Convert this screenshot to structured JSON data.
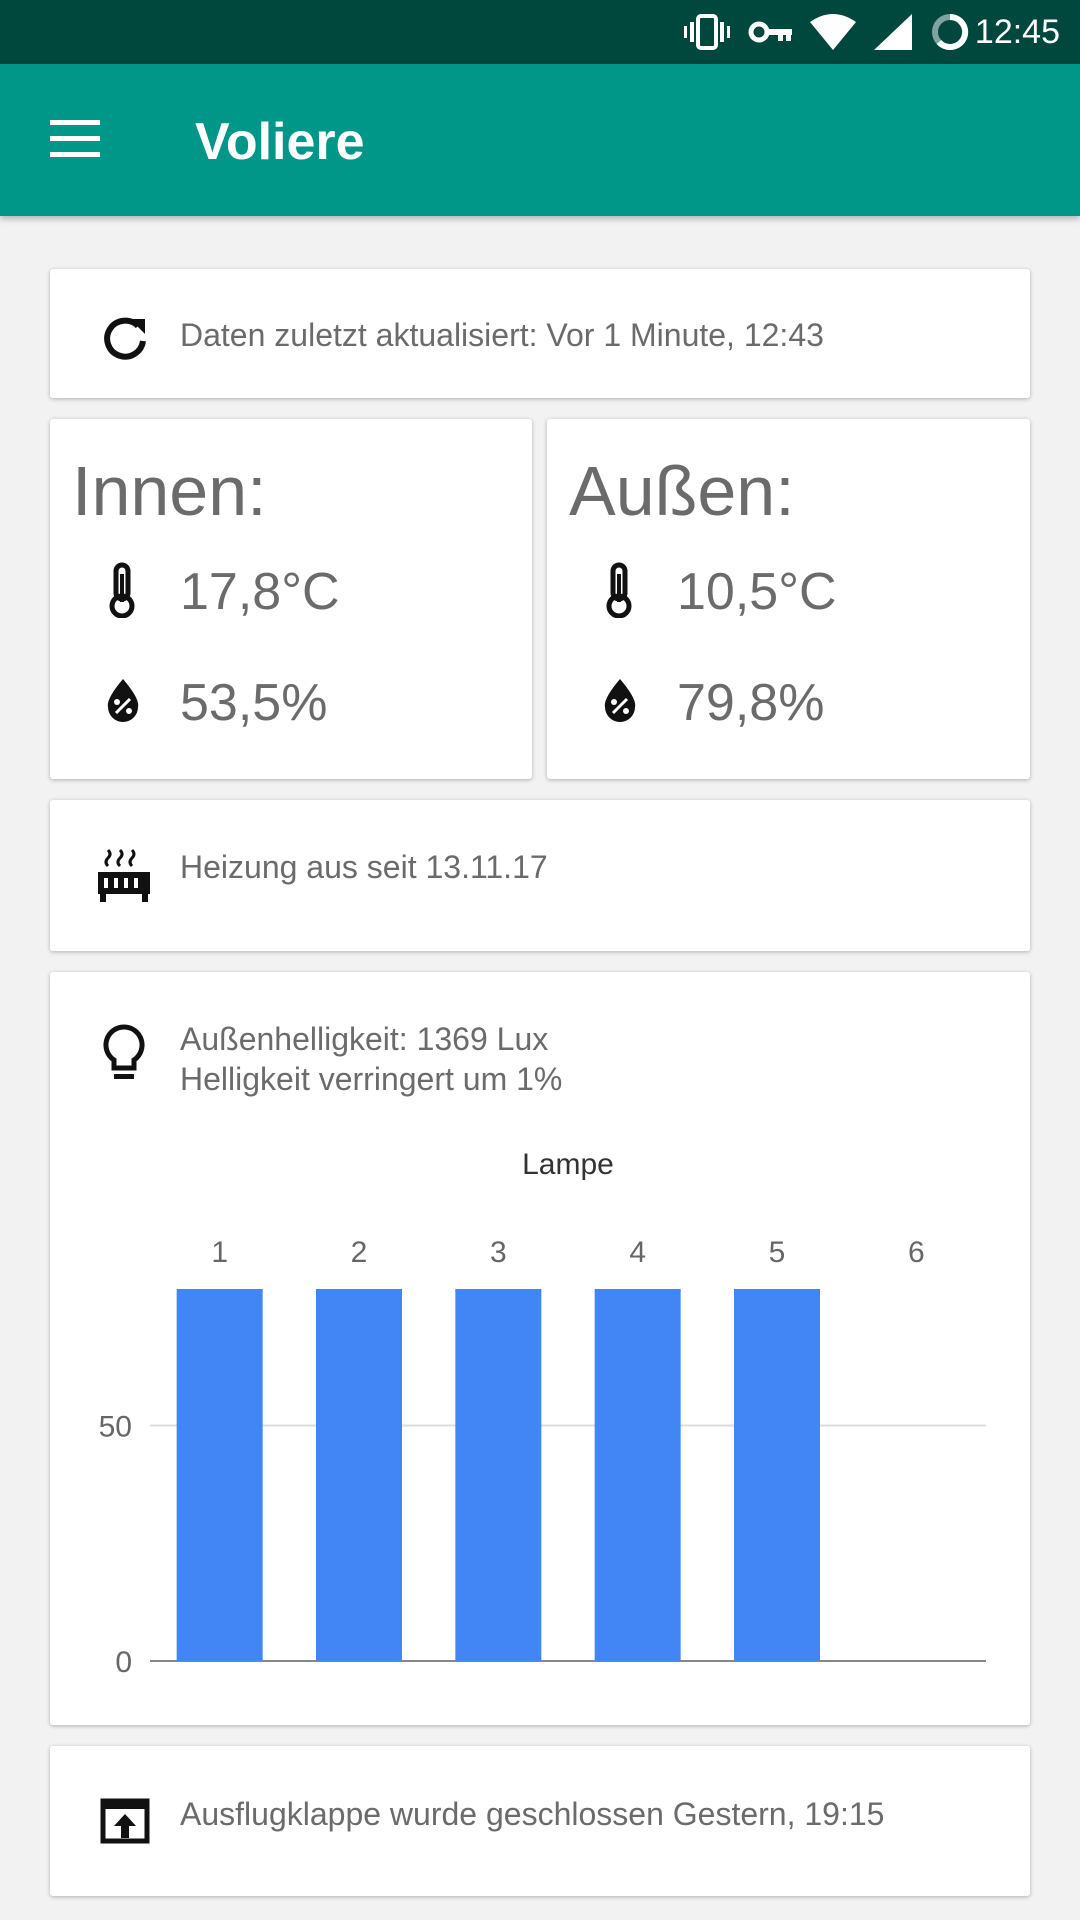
{
  "status_bar": {
    "time": "12:45",
    "icons": [
      "vibrate-icon",
      "vpn-key-icon",
      "wifi-icon",
      "signal-icon",
      "battery-icon"
    ]
  },
  "app_bar": {
    "title": "Voliere",
    "menu_icon": "menu-icon"
  },
  "refresh_card": {
    "icon": "refresh-icon",
    "text": "Daten zuletzt aktualisiert: Vor 1 Minute, 12:43"
  },
  "inside": {
    "title": "Innen:",
    "temperature": "17,8°C",
    "humidity": "53,5%"
  },
  "outside": {
    "title": "Außen:",
    "temperature": "10,5°C",
    "humidity": "79,8%"
  },
  "heating": {
    "icon": "heater-icon",
    "text": "Heizung aus seit 13.11.17"
  },
  "brightness": {
    "icon": "lightbulb-icon",
    "line1": "Außenhelligkeit: 1369 Lux",
    "line2": "Helligkeit verringert um 1%"
  },
  "chart_data": {
    "type": "bar",
    "title": "Lampe",
    "categories": [
      "1",
      "2",
      "3",
      "4",
      "5",
      "6"
    ],
    "values": [
      79,
      79,
      79,
      79,
      79,
      0
    ],
    "yticks": [
      0,
      50
    ],
    "ylim": [
      0,
      79
    ],
    "grid": true,
    "bar_color": "#4285f4"
  },
  "flap": {
    "icon": "open-in-browser-icon",
    "text": "Ausflugklappe wurde geschlossen Gestern, 19:15"
  },
  "colors": {
    "primary": "#009688",
    "primary_dark": "#00473e",
    "accent_bar": "#4285f4"
  }
}
